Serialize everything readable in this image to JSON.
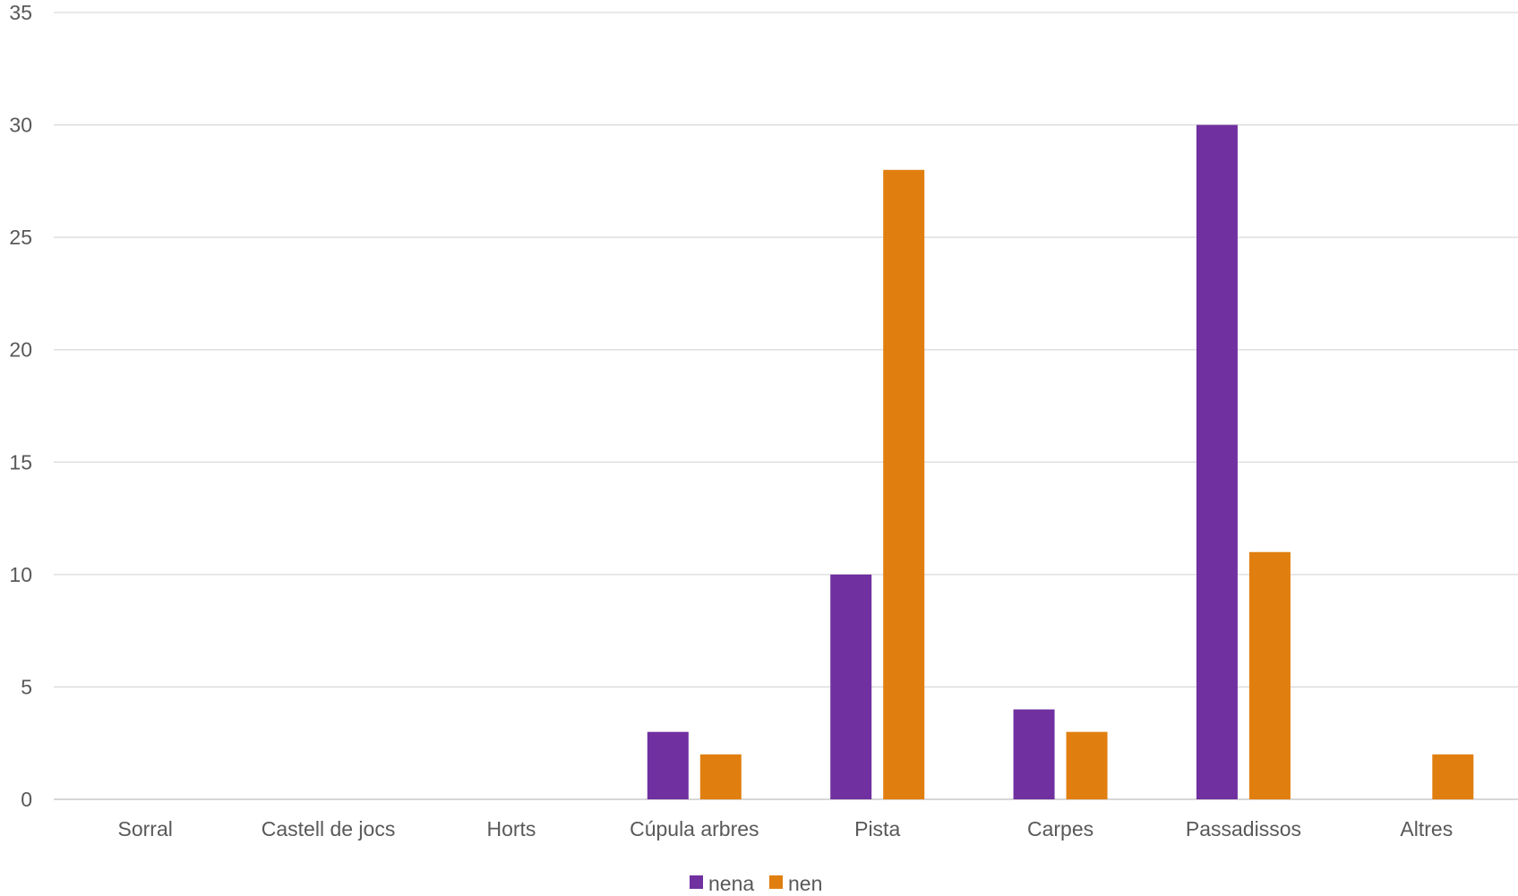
{
  "chart_data": {
    "type": "bar",
    "categories": [
      "Sorral",
      "Castell de jocs",
      "Horts",
      "Cúpula arbres",
      "Pista",
      "Carpes",
      "Passadissos",
      "Altres"
    ],
    "series": [
      {
        "name": "nena",
        "color": "#7030a0",
        "values": [
          0,
          0,
          0,
          3,
          10,
          4,
          30,
          0
        ]
      },
      {
        "name": "nen",
        "color": "#e07f0f",
        "values": [
          0,
          0,
          0,
          2,
          28,
          3,
          11,
          2
        ]
      }
    ],
    "yticks": [
      "0",
      "5",
      "10",
      "15",
      "20",
      "25",
      "30",
      "35"
    ],
    "ylim": [
      0,
      35
    ],
    "grid": true,
    "legend_position": "bottom"
  }
}
